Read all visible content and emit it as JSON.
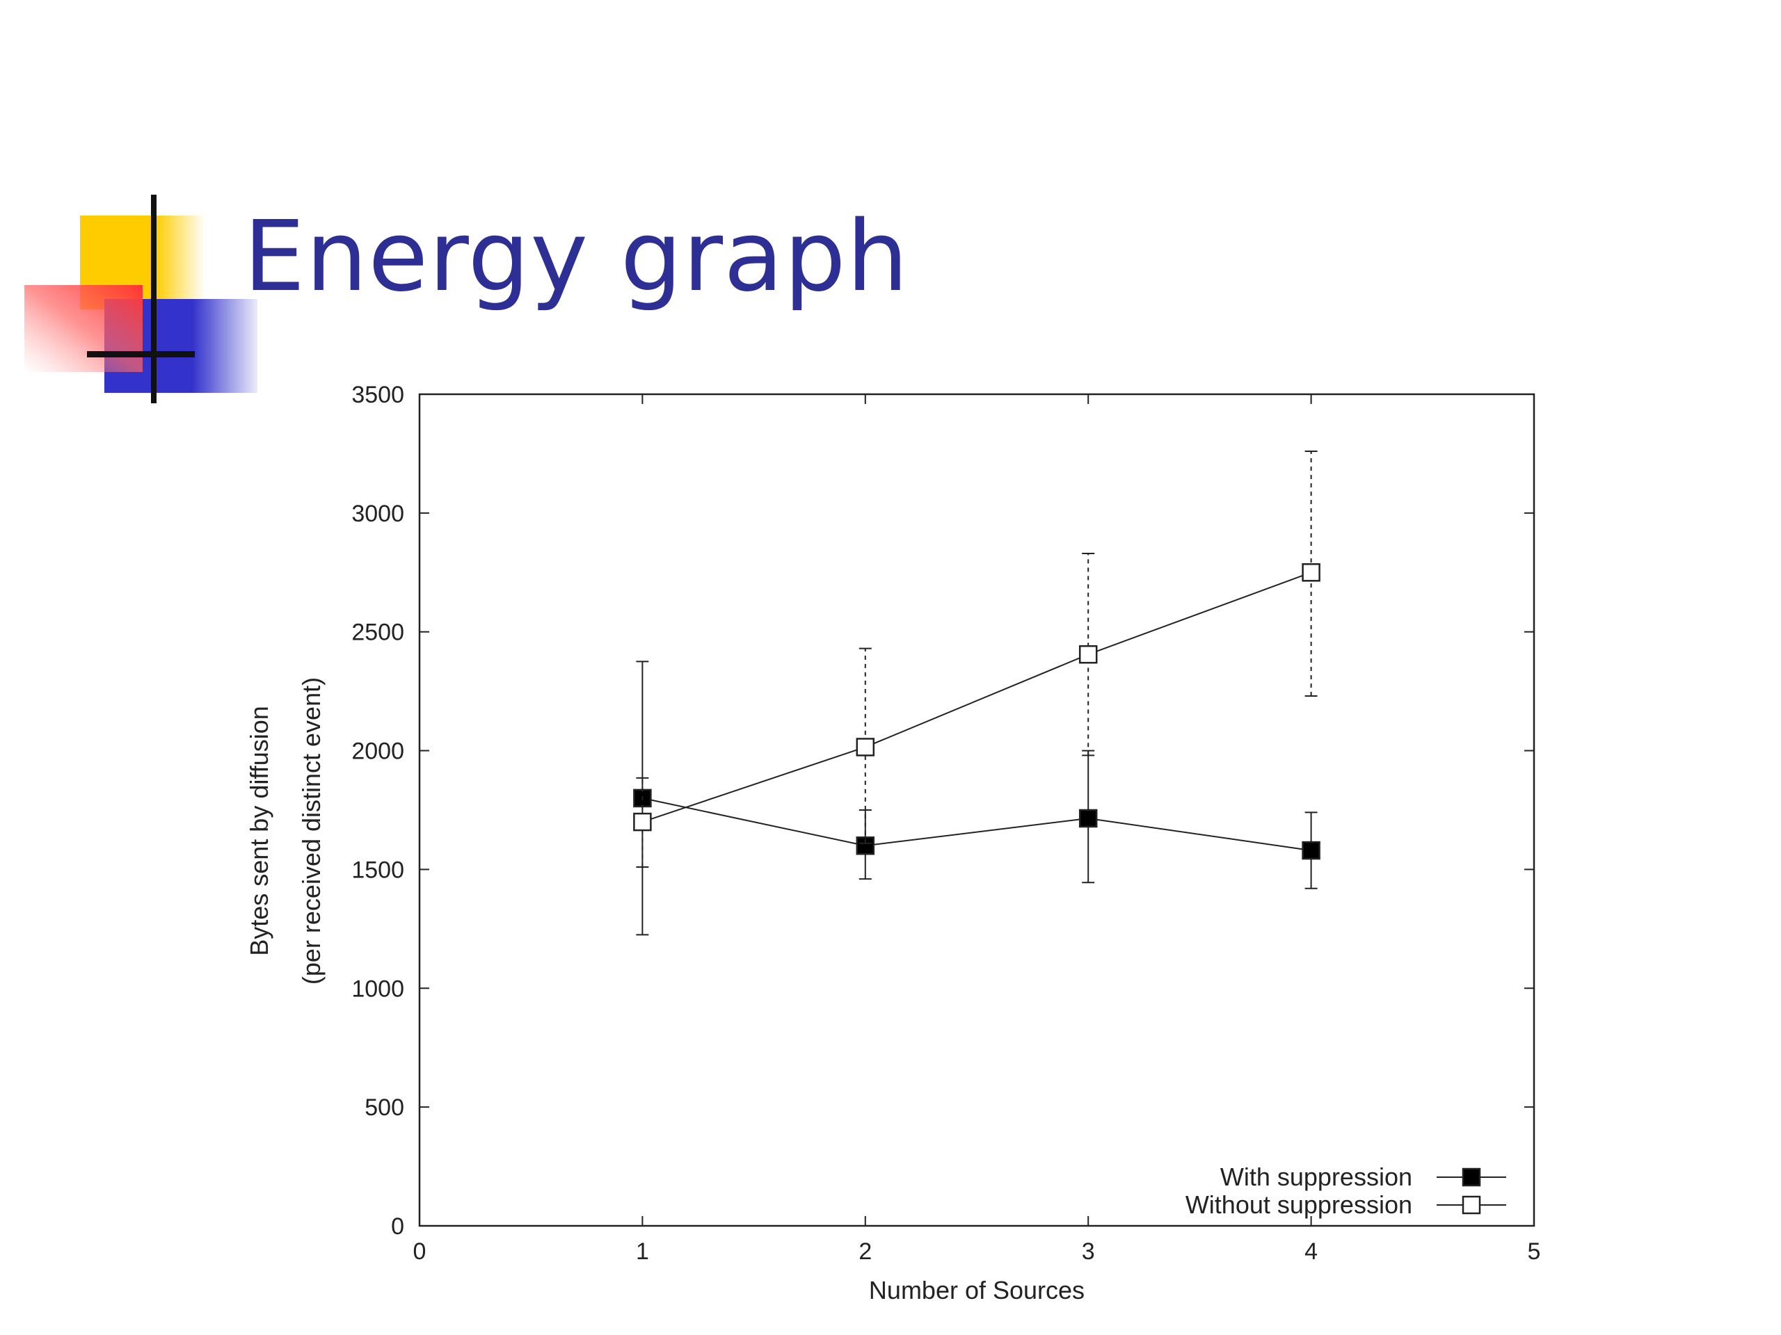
{
  "slide": {
    "title": "Energy graph",
    "logo_colors": {
      "yellow": "#ffcc00",
      "red": "#ff3333",
      "blue": "#3333cc",
      "bar": "#111111"
    },
    "title_color": "#2e2f95"
  },
  "chart_data": {
    "type": "line",
    "xlabel": "Number of Sources",
    "ylabel": "Bytes sent by diffusion",
    "ylabel2": "(per received distinct event)",
    "xlim": [
      0,
      5
    ],
    "ylim": [
      0,
      3500
    ],
    "xticks": [
      "0",
      "1",
      "2",
      "3",
      "4",
      "5"
    ],
    "yticks": [
      "0",
      "500",
      "1000",
      "1500",
      "2000",
      "2500",
      "3000",
      "3500"
    ],
    "grid": false,
    "legend_position": "bottom-right",
    "series": [
      {
        "name": "With suppression",
        "marker": "filled-square",
        "line_style": "solid-errorbars",
        "x": [
          1,
          2,
          3,
          4
        ],
        "y": [
          1800,
          1600,
          1715,
          1580
        ],
        "err_low": [
          1225,
          1460,
          1445,
          1420
        ],
        "err_high": [
          2375,
          1750,
          2000,
          1740
        ]
      },
      {
        "name": "Without suppression",
        "marker": "open-square",
        "line_style": "dashed-errorbars",
        "x": [
          1,
          2,
          3,
          4
        ],
        "y": [
          1700,
          2015,
          2405,
          2750
        ],
        "err_low": [
          1510,
          1610,
          1980,
          2230
        ],
        "err_high": [
          1885,
          2430,
          2830,
          3260
        ]
      }
    ]
  }
}
